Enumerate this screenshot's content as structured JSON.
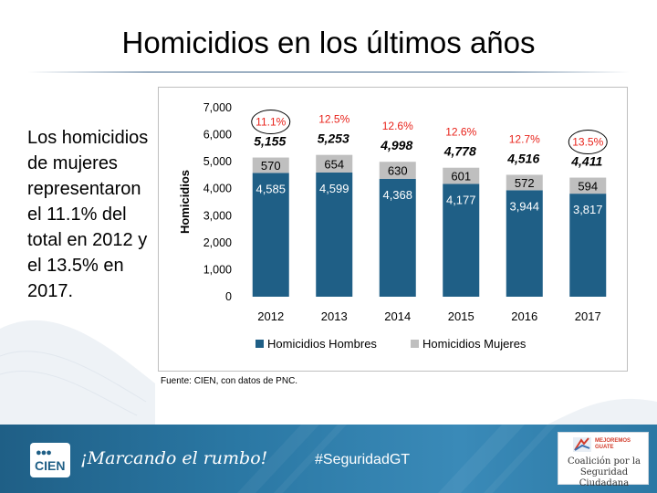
{
  "slide": {
    "title": "Homicidios en los últimos años",
    "side_text": "Los homicidios de mujeres representaron el 11.1% del total en 2012 y el 13.5% en 2017.",
    "source": "Fuente: CIEN, con datos de PNC."
  },
  "footer": {
    "logo_text": "CIEN",
    "slogan": "¡Marcando el rumbo!",
    "hashtag": "#SeguridadGT",
    "partner_logo_top": "MEJOREMOS GUATE",
    "partner_logo_text": "Coalición por la Seguridad Ciudadana"
  },
  "colors": {
    "hombres": "#1f5f86",
    "mujeres": "#bfbfbf",
    "percent": "#e8231b"
  },
  "chart_data": {
    "type": "bar",
    "stacked": true,
    "categories": [
      "2012",
      "2013",
      "2014",
      "2015",
      "2016",
      "2017"
    ],
    "series": [
      {
        "name": "Homicidios Hombres",
        "values": [
          4585,
          4599,
          4368,
          4177,
          3944,
          3817
        ],
        "labels": [
          "4,585",
          "4,599",
          "4,368",
          "4,177",
          "3,944",
          "3,817"
        ]
      },
      {
        "name": "Homicidios Mujeres",
        "values": [
          570,
          654,
          630,
          601,
          572,
          594
        ],
        "labels": [
          "570",
          "654",
          "630",
          "601",
          "572",
          "594"
        ]
      }
    ],
    "totals": [
      "5,155",
      "5,253",
      "4,998",
      "4,778",
      "4,516",
      "4,411"
    ],
    "percent_mujeres": [
      "11.1%",
      "12.5%",
      "12.6%",
      "12.6%",
      "12.7%",
      "13.5%"
    ],
    "circled": [
      "2012",
      "2017"
    ],
    "ylabel": "Homicidios",
    "xlabel": "",
    "ylim": [
      0,
      7000
    ],
    "yticks": [
      0,
      1000,
      2000,
      3000,
      4000,
      5000,
      6000,
      7000
    ],
    "ytick_labels": [
      "0",
      "1,000",
      "2,000",
      "3,000",
      "4,000",
      "5,000",
      "6,000",
      "7,000"
    ],
    "legend_position": "bottom"
  }
}
